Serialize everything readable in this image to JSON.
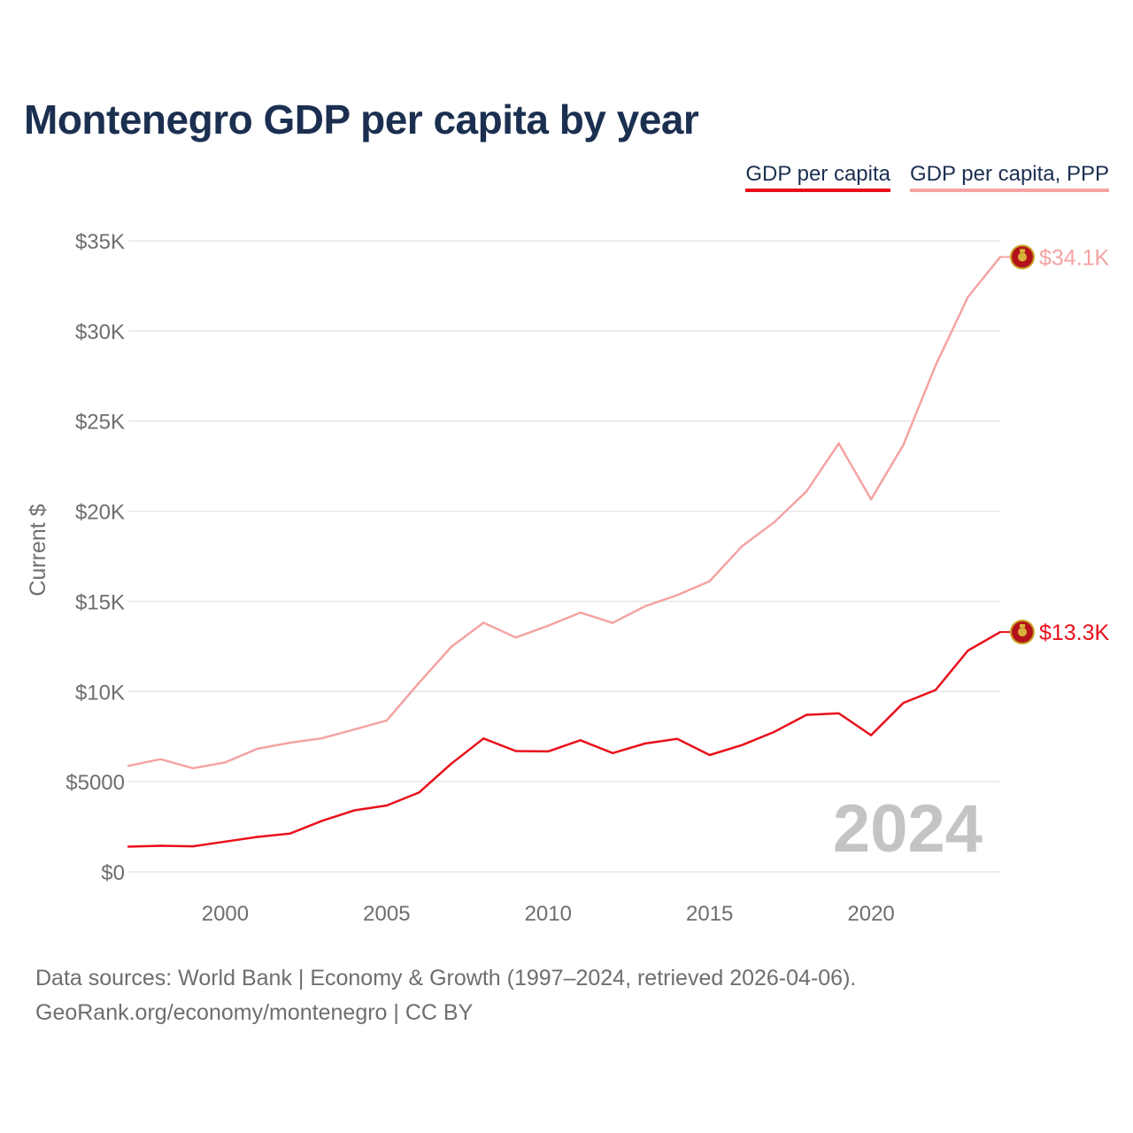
{
  "title": "Montenegro GDP per capita by year",
  "legend": {
    "gdp_label": "GDP per capita",
    "ppp_label": "GDP per capita, PPP"
  },
  "footer": {
    "line1": "Data sources: World Bank | Economy & Growth (1997–2024, retrieved 2026-04-06).",
    "line2": "GeoRank.org/economy/montenegro | CC BY"
  },
  "colors": {
    "gdp": "#e8101a",
    "ppp": "#f4a3a3",
    "title": "#1b2f50",
    "axis_text": "#6e6e6e",
    "grid": "#e6e6e6",
    "year_watermark": "#c4c4c4"
  },
  "chart_data": {
    "type": "line",
    "title": "Montenegro GDP per capita by year",
    "ylabel": "Current $",
    "xlabel": "",
    "x": [
      1997,
      1998,
      1999,
      2000,
      2001,
      2002,
      2003,
      2004,
      2005,
      2006,
      2007,
      2008,
      2009,
      2010,
      2011,
      2012,
      2013,
      2014,
      2015,
      2016,
      2017,
      2018,
      2019,
      2020,
      2021,
      2022,
      2023,
      2024
    ],
    "xlim": [
      1997,
      2024
    ],
    "ylim": [
      0,
      35000
    ],
    "x_ticks": [
      2000,
      2005,
      2010,
      2015,
      2020
    ],
    "x_tick_labels": [
      "2000",
      "2005",
      "2010",
      "2015",
      "2020"
    ],
    "y_ticks": [
      0,
      5000,
      10000,
      15000,
      20000,
      25000,
      30000,
      35000
    ],
    "y_tick_labels": [
      "$0",
      "$5000",
      "$10K",
      "$15K",
      "$20K",
      "$25K",
      "$30K",
      "$35K"
    ],
    "grid": true,
    "legend_position": "top-right",
    "current_year_label": "2024",
    "series": [
      {
        "name": "GDP per capita",
        "key": "gdp",
        "end_label": "$13.3K",
        "values": [
          1400,
          1450,
          1420,
          1680,
          1940,
          2120,
          2830,
          3410,
          3680,
          4400,
          6000,
          7400,
          6700,
          6680,
          7300,
          6590,
          7120,
          7380,
          6480,
          7030,
          7760,
          8710,
          8790,
          7580,
          9370,
          10090,
          12270,
          13300
        ]
      },
      {
        "name": "GDP per capita, PPP",
        "key": "ppp",
        "end_label": "$34.1K",
        "values": [
          5880,
          6250,
          5750,
          6070,
          6830,
          7160,
          7410,
          7900,
          8400,
          10480,
          12480,
          13820,
          13000,
          13650,
          14380,
          13810,
          14730,
          15350,
          16120,
          18050,
          19390,
          21100,
          23760,
          20660,
          23680,
          28090,
          31880,
          34100
        ]
      }
    ]
  }
}
